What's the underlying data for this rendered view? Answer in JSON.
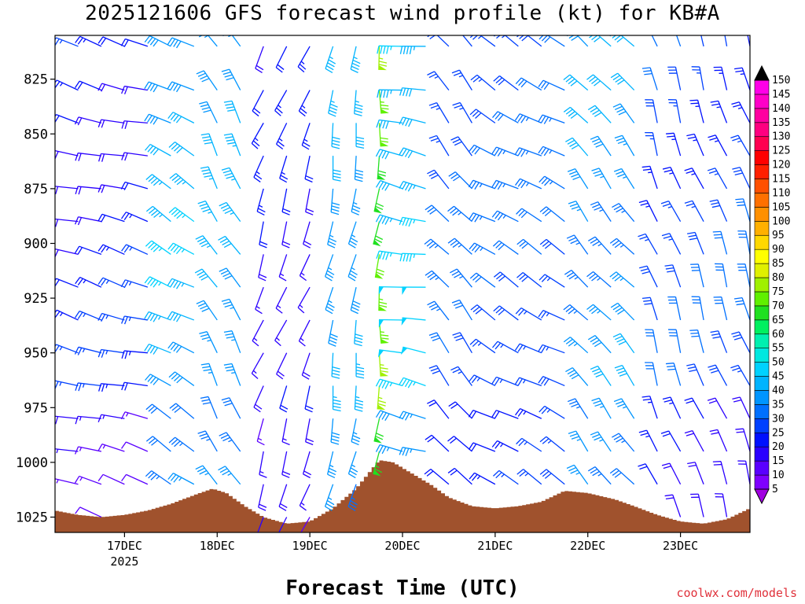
{
  "title": "2025121606 GFS forecast wind profile (kt) for KB#A",
  "xlabel": "Forecast Time (UTC)",
  "credit": "coolwx.com/models",
  "chart_data": {
    "type": "wind_barb_profile",
    "ylabel_units": "hPa",
    "y_ticks": [
      825,
      850,
      875,
      900,
      925,
      950,
      975,
      1000,
      1025
    ],
    "ylim": [
      805,
      1032
    ],
    "x_ticks": [
      {
        "day": 17,
        "label": "17DEC",
        "sub": "2025"
      },
      {
        "day": 18,
        "label": "18DEC",
        "sub": ""
      },
      {
        "day": 19,
        "label": "19DEC",
        "sub": ""
      },
      {
        "day": 20,
        "label": "20DEC",
        "sub": ""
      },
      {
        "day": 21,
        "label": "21DEC",
        "sub": ""
      },
      {
        "day": 22,
        "label": "22DEC",
        "sub": ""
      },
      {
        "day": 23,
        "label": "23DEC",
        "sub": ""
      }
    ],
    "xlim_days": [
      16.25,
      23.75
    ],
    "levels": [
      810,
      830,
      845,
      860,
      875,
      890,
      905,
      920,
      935,
      950,
      965,
      980,
      995,
      1010,
      1025
    ],
    "time_step_hours": 6,
    "surface_color": "#a0522d",
    "surface_pressure": [
      {
        "day": 16.25,
        "p": 1022
      },
      {
        "day": 16.5,
        "p": 1024
      },
      {
        "day": 16.75,
        "p": 1025
      },
      {
        "day": 17.0,
        "p": 1024
      },
      {
        "day": 17.25,
        "p": 1022
      },
      {
        "day": 17.5,
        "p": 1019
      },
      {
        "day": 17.75,
        "p": 1015
      },
      {
        "day": 17.95,
        "p": 1012
      },
      {
        "day": 18.1,
        "p": 1014
      },
      {
        "day": 18.3,
        "p": 1020
      },
      {
        "day": 18.5,
        "p": 1025
      },
      {
        "day": 18.75,
        "p": 1028
      },
      {
        "day": 19.0,
        "p": 1027
      },
      {
        "day": 19.25,
        "p": 1021
      },
      {
        "day": 19.5,
        "p": 1012
      },
      {
        "day": 19.75,
        "p": 999
      },
      {
        "day": 19.9,
        "p": 1000
      },
      {
        "day": 20.1,
        "p": 1005
      },
      {
        "day": 20.3,
        "p": 1010
      },
      {
        "day": 20.5,
        "p": 1016
      },
      {
        "day": 20.75,
        "p": 1020
      },
      {
        "day": 21.0,
        "p": 1021
      },
      {
        "day": 21.25,
        "p": 1020
      },
      {
        "day": 21.5,
        "p": 1018
      },
      {
        "day": 21.75,
        "p": 1013
      },
      {
        "day": 22.0,
        "p": 1014
      },
      {
        "day": 22.3,
        "p": 1017
      },
      {
        "day": 22.5,
        "p": 1020
      },
      {
        "day": 22.75,
        "p": 1024
      },
      {
        "day": 23.0,
        "p": 1027
      },
      {
        "day": 23.25,
        "p": 1028
      },
      {
        "day": 23.5,
        "p": 1026
      },
      {
        "day": 23.75,
        "p": 1021
      }
    ],
    "wind_regimes": [
      {
        "from": 16.25,
        "to": 17.4,
        "dir_deg": 285,
        "speed_kt": 22
      },
      {
        "from": 17.4,
        "to": 18.0,
        "dir_deg": 300,
        "speed_kt": 42
      },
      {
        "from": 18.0,
        "to": 18.5,
        "dir_deg": 330,
        "speed_kt": 40
      },
      {
        "from": 18.5,
        "to": 19.1,
        "dir_deg": 200,
        "speed_kt": 20
      },
      {
        "from": 19.1,
        "to": 19.55,
        "dir_deg": 190,
        "speed_kt": 40
      },
      {
        "from": 19.55,
        "to": 19.8,
        "dir_deg": 185,
        "speed_kt": 72
      },
      {
        "from": 19.8,
        "to": 20.3,
        "dir_deg": 280,
        "speed_kt": 45
      },
      {
        "from": 20.3,
        "to": 20.9,
        "dir_deg": 320,
        "speed_kt": 30
      },
      {
        "from": 20.9,
        "to": 21.8,
        "dir_deg": 300,
        "speed_kt": 30
      },
      {
        "from": 21.8,
        "to": 22.6,
        "dir_deg": 320,
        "speed_kt": 38
      },
      {
        "from": 22.6,
        "to": 23.75,
        "dir_deg": 340,
        "speed_kt": 28
      }
    ],
    "colorbar": {
      "levels": [
        5,
        10,
        15,
        20,
        25,
        30,
        35,
        40,
        45,
        50,
        55,
        60,
        65,
        70,
        75,
        80,
        85,
        90,
        95,
        100,
        105,
        110,
        115,
        120,
        125,
        130,
        135,
        140,
        145,
        150
      ],
      "colors": [
        "#7f00ff",
        "#5a00ff",
        "#2a00ff",
        "#0010ff",
        "#0040ff",
        "#0070ff",
        "#0095ff",
        "#00b4ff",
        "#00d2ff",
        "#00e8e0",
        "#00f0b0",
        "#00f060",
        "#20e020",
        "#60f000",
        "#a0f000",
        "#e0f000",
        "#ffff00",
        "#ffd800",
        "#ffb000",
        "#ff9000",
        "#ff7000",
        "#ff5000",
        "#ff2000",
        "#ff0000",
        "#ff0050",
        "#ff0080",
        "#ff00a0",
        "#ff00c8",
        "#ff00e8",
        "#ff40ff"
      ],
      "over_color": "#000000",
      "under_color": "#a000e0"
    }
  }
}
